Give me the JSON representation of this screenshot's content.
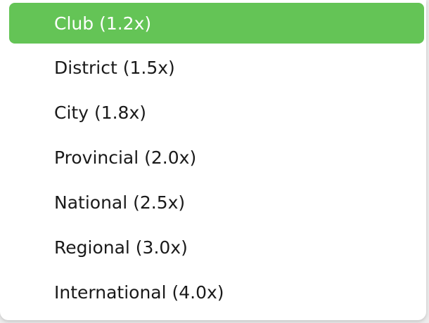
{
  "dropdown": {
    "selected_index": 0,
    "colors": {
      "selected_bg": "#64c456",
      "selected_text": "#ffffff",
      "text": "#1a1a1a"
    },
    "options": [
      {
        "label": "Club (1.2x)"
      },
      {
        "label": "District (1.5x)"
      },
      {
        "label": "City (1.8x)"
      },
      {
        "label": "Provincial (2.0x)"
      },
      {
        "label": "National (2.5x)"
      },
      {
        "label": "Regional (3.0x)"
      },
      {
        "label": "International (4.0x)"
      }
    ]
  }
}
